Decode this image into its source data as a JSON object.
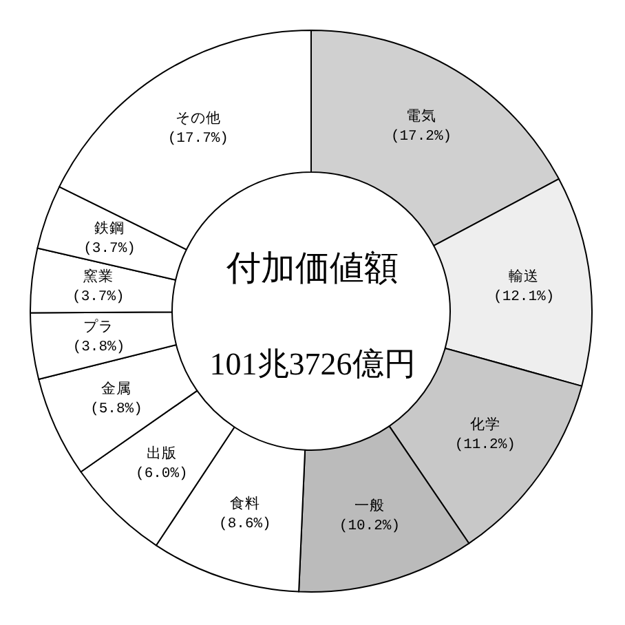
{
  "chart_data": {
    "type": "donut",
    "title": "付加価値額",
    "subtitle": "101兆3726億円",
    "categories": [
      "電気",
      "輸送",
      "化学",
      "一般",
      "食料",
      "出版",
      "金属",
      "プラ",
      "窯業",
      "鉄鋼",
      "その他"
    ],
    "values": [
      17.2,
      12.1,
      11.2,
      10.2,
      8.6,
      6.0,
      5.8,
      3.8,
      3.7,
      3.7,
      17.7
    ],
    "colors": [
      "#d0d0d0",
      "#eeeeee",
      "#c8c8c8",
      "#bbbbbb",
      "#ffffff",
      "#ffffff",
      "#ffffff",
      "#ffffff",
      "#ffffff",
      "#ffffff",
      "#ffffff"
    ],
    "value_labels": [
      "(17.2%)",
      "(12.1%)",
      "(11.2%)",
      "(10.2%)",
      "(8.6%)",
      "(6.0%)",
      "(5.8%)",
      "(3.8%)",
      "(3.7%)",
      "(3.7%)",
      "(17.7%)"
    ],
    "legend": false
  }
}
